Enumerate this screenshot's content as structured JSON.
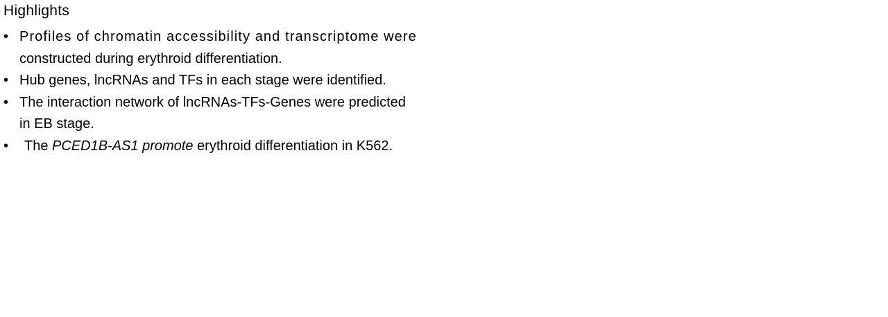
{
  "heading": "Highlights",
  "bullet_symbol": "•",
  "items": [
    {
      "line1": "Profiles of chromatin accessibility and transcriptome were",
      "line2": "constructed during erythroid differentiation."
    },
    {
      "line1": "Hub genes, lncRNAs and TFs in each stage were identified."
    },
    {
      "line1": "The interaction network of lncRNAs-TFs-Genes were predicted",
      "line2": "in EB stage."
    },
    {
      "lead": "The",
      "gene": "PCED1B-AS1",
      "verb": "promote",
      "rest": "erythroid differentiation in K562."
    }
  ]
}
